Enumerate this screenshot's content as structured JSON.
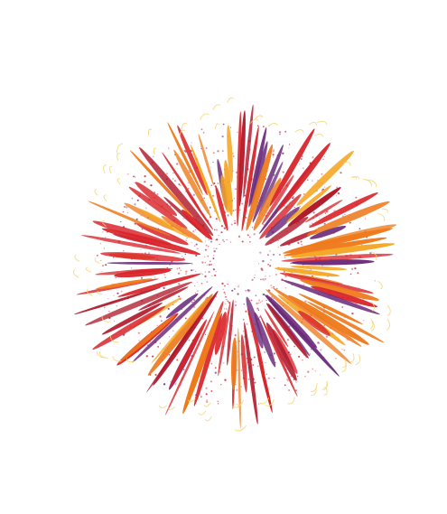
{
  "image": {
    "subject": "firework-burst",
    "background_color": "#ffffff",
    "colors": {
      "red": "#d8242a",
      "crimson": "#b0182a",
      "orange": "#ee7a1c",
      "amber": "#f5a623",
      "purple": "#6a2a7a",
      "yellow": "#f6d36b",
      "dust": "#c8202a"
    }
  }
}
